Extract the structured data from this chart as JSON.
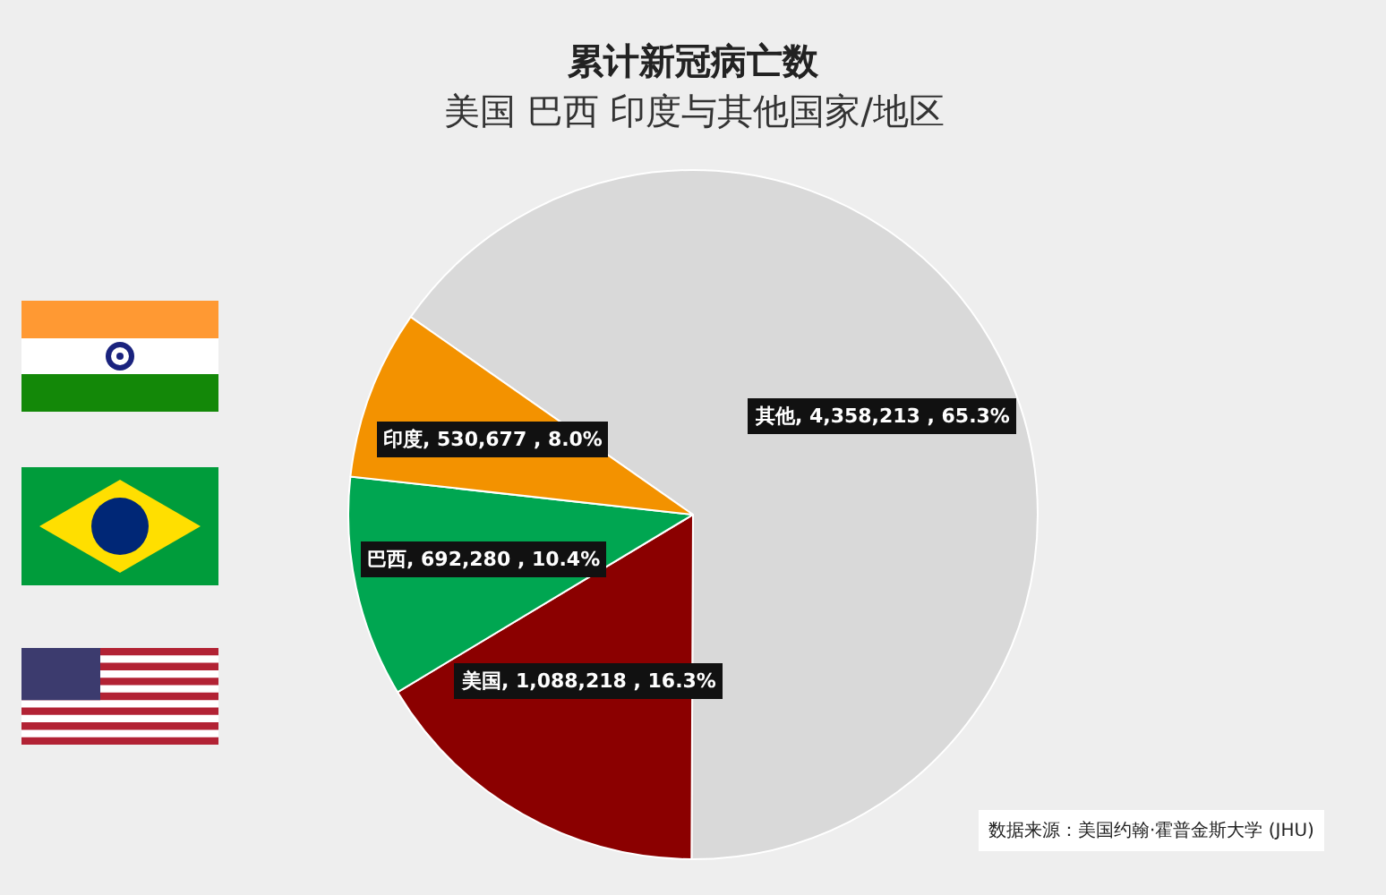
{
  "chart_data": {
    "type": "pie",
    "title": "累计新冠病亡数",
    "subtitle": "美国 巴西 印度与其他国家/地区",
    "categories": [
      "其他",
      "美国",
      "巴西",
      "印度"
    ],
    "values": [
      4358213,
      1088218,
      692280,
      530677
    ],
    "colors": [
      "#d9d9d9",
      "#8b0000",
      "#00a651",
      "#f39200"
    ],
    "value_labels": [
      ", 4,358,213 , 65.3%",
      ", 1,088,218 , 16.3%",
      ", 692,280 , 10.4%",
      ", 530,677 , 8.0%"
    ],
    "annotations": [
      "数据来源：美国约翰·霍普金斯大学 (JHU)"
    ]
  }
}
